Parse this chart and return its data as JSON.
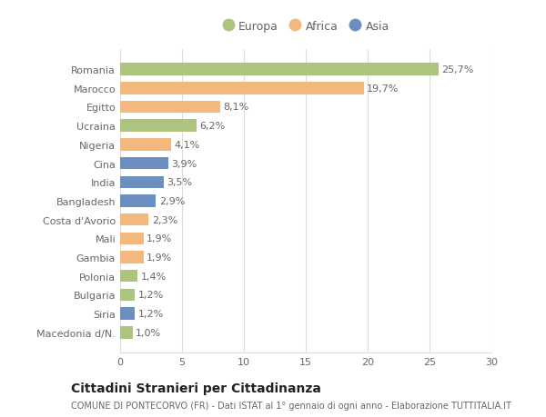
{
  "countries": [
    "Romania",
    "Marocco",
    "Egitto",
    "Ucraina",
    "Nigeria",
    "Cina",
    "India",
    "Bangladesh",
    "Costa d'Avorio",
    "Mali",
    "Gambia",
    "Polonia",
    "Bulgaria",
    "Siria",
    "Macedonia d/N."
  ],
  "values": [
    25.7,
    19.7,
    8.1,
    6.2,
    4.1,
    3.9,
    3.5,
    2.9,
    2.3,
    1.9,
    1.9,
    1.4,
    1.2,
    1.2,
    1.0
  ],
  "labels": [
    "25,7%",
    "19,7%",
    "8,1%",
    "6,2%",
    "4,1%",
    "3,9%",
    "3,5%",
    "2,9%",
    "2,3%",
    "1,9%",
    "1,9%",
    "1,4%",
    "1,2%",
    "1,2%",
    "1,0%"
  ],
  "continents": [
    "Europa",
    "Africa",
    "Africa",
    "Europa",
    "Africa",
    "Asia",
    "Asia",
    "Asia",
    "Africa",
    "Africa",
    "Africa",
    "Europa",
    "Europa",
    "Asia",
    "Europa"
  ],
  "colors": {
    "Europa": "#adc47e",
    "Africa": "#f2b87e",
    "Asia": "#6b90c0"
  },
  "title": "Cittadini Stranieri per Cittadinanza",
  "subtitle": "COMUNE DI PONTECORVO (FR) - Dati ISTAT al 1° gennaio di ogni anno - Elaborazione TUTTITALIA.IT",
  "xlim": [
    0,
    30
  ],
  "xticks": [
    0,
    5,
    10,
    15,
    20,
    25,
    30
  ],
  "background_color": "#ffffff",
  "grid_color": "#dddddd",
  "bar_height": 0.65,
  "label_fontsize": 8.0,
  "tick_fontsize": 8.0,
  "title_fontsize": 10,
  "subtitle_fontsize": 7.0,
  "ylabel_color": "#666666",
  "xlabel_color": "#666666"
}
